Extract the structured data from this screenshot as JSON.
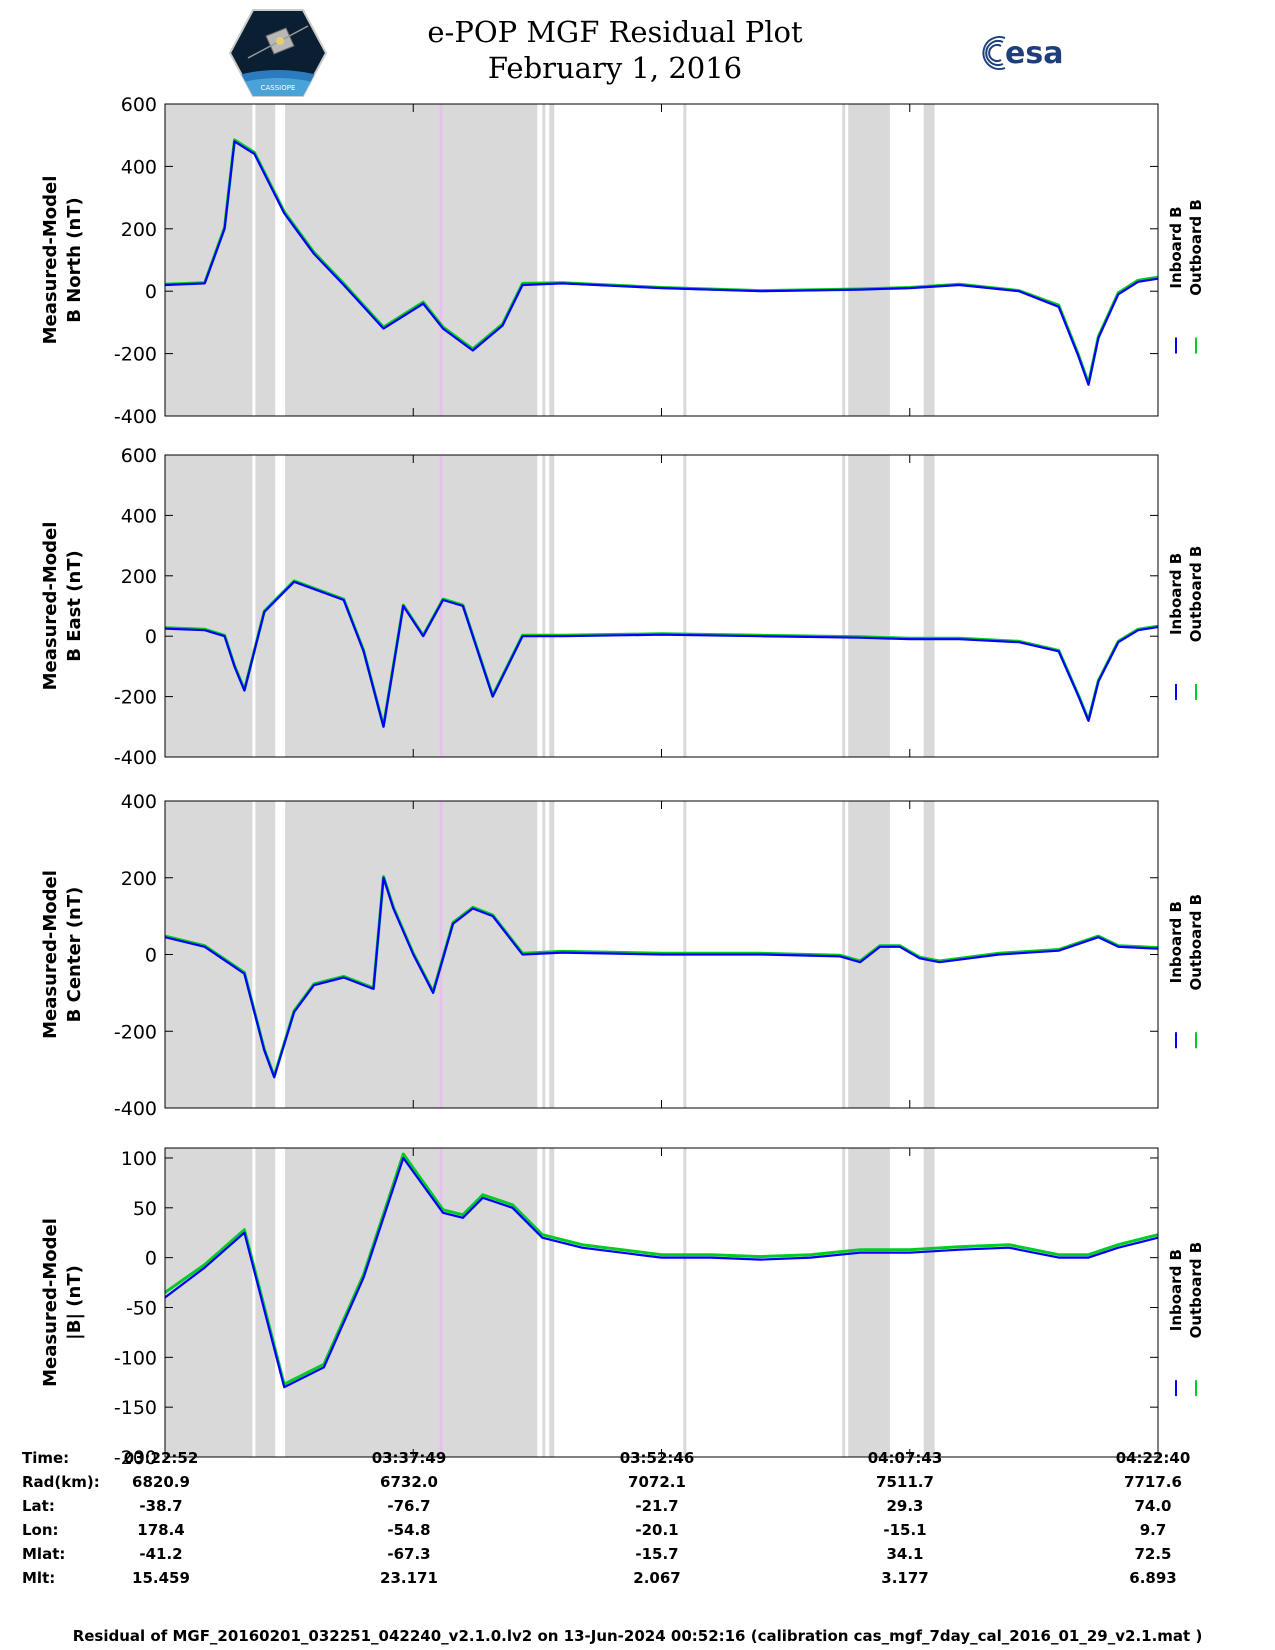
{
  "header": {
    "title_line1": "e-POP MGF Residual Plot",
    "title_line2": "February 1, 2016",
    "mission_logo_caption": "CASSIOPE",
    "esa_logo_text": "esa"
  },
  "colors": {
    "inboard": "#0000ff",
    "outboard": "#00cc22",
    "shade": "#d9d9d9",
    "marker": "#e8c0ee"
  },
  "legend": {
    "inboard": "Inboard B",
    "outboard": "Outboard B"
  },
  "chart_data": [
    {
      "type": "line",
      "title": "",
      "ylabel_line1": "Measured-Model",
      "ylabel_line2": "B North (nT)",
      "ylim": [
        -400,
        600
      ],
      "yticks": [
        "600",
        "400",
        "200",
        "0",
        "-200",
        "-400"
      ],
      "ytick_values": [
        600,
        400,
        200,
        0,
        -200,
        -400
      ],
      "x_minutes": [
        0,
        4,
        6,
        7,
        9,
        12,
        15,
        18,
        20,
        22,
        24,
        26,
        28,
        31,
        34,
        36,
        40,
        50,
        60,
        70,
        75,
        80,
        86,
        90,
        92,
        93,
        94,
        96,
        98,
        100
      ],
      "series": [
        {
          "name": "Inboard B",
          "values": [
            20,
            25,
            200,
            480,
            440,
            250,
            120,
            20,
            -50,
            -120,
            -80,
            -40,
            -120,
            -190,
            -110,
            20,
            25,
            10,
            0,
            5,
            10,
            20,
            0,
            -50,
            -210,
            -300,
            -150,
            -10,
            30,
            40
          ]
        },
        {
          "name": "Outboard B",
          "values": [
            22,
            27,
            205,
            485,
            445,
            255,
            125,
            25,
            -45,
            -115,
            -75,
            -35,
            -115,
            -185,
            -105,
            25,
            27,
            12,
            2,
            7,
            12,
            22,
            2,
            -45,
            -205,
            -295,
            -145,
            -5,
            35,
            45
          ]
        }
      ]
    },
    {
      "type": "line",
      "title": "",
      "ylabel_line1": "Measured-Model",
      "ylabel_line2": "B East (nT)",
      "ylim": [
        -400,
        600
      ],
      "yticks": [
        "600",
        "400",
        "200",
        "0",
        "-200",
        "-400"
      ],
      "ytick_values": [
        600,
        400,
        200,
        0,
        -200,
        -400
      ],
      "x_minutes": [
        0,
        4,
        6,
        7,
        8,
        10,
        13,
        18,
        20,
        22,
        24,
        26,
        28,
        30,
        33,
        36,
        40,
        50,
        60,
        70,
        75,
        80,
        86,
        90,
        92,
        93,
        94,
        96,
        98,
        100
      ],
      "series": [
        {
          "name": "Inboard B",
          "values": [
            25,
            20,
            0,
            -100,
            -180,
            80,
            180,
            120,
            -50,
            -300,
            100,
            0,
            120,
            100,
            -200,
            0,
            0,
            5,
            0,
            -5,
            -10,
            -10,
            -20,
            -50,
            -200,
            -280,
            -150,
            -20,
            20,
            30
          ]
        },
        {
          "name": "Outboard B",
          "values": [
            28,
            23,
            3,
            -97,
            -177,
            83,
            183,
            123,
            -47,
            -297,
            103,
            3,
            123,
            103,
            -197,
            3,
            3,
            8,
            3,
            -2,
            -7,
            -7,
            -17,
            -47,
            -197,
            -277,
            -147,
            -17,
            23,
            33
          ]
        }
      ]
    },
    {
      "type": "line",
      "title": "",
      "ylabel_line1": "Measured-Model",
      "ylabel_line2": "B Center (nT)",
      "ylim": [
        -400,
        400
      ],
      "yticks": [
        "400",
        "200",
        "0",
        "-200",
        "-400"
      ],
      "ytick_values": [
        400,
        200,
        0,
        -200,
        -400
      ],
      "x_minutes": [
        0,
        4,
        8,
        10,
        11,
        13,
        15,
        18,
        21,
        22,
        23,
        25,
        27,
        29,
        31,
        33,
        36,
        40,
        50,
        60,
        68,
        70,
        72,
        74,
        76,
        78,
        84,
        90,
        94,
        96,
        100
      ],
      "series": [
        {
          "name": "Inboard B",
          "values": [
            45,
            20,
            -50,
            -250,
            -320,
            -150,
            -80,
            -60,
            -90,
            200,
            120,
            0,
            -100,
            80,
            120,
            100,
            0,
            5,
            0,
            0,
            -5,
            -20,
            20,
            20,
            -10,
            -20,
            0,
            10,
            45,
            20,
            15
          ]
        },
        {
          "name": "Outboard B",
          "values": [
            48,
            23,
            -47,
            -247,
            -317,
            -147,
            -77,
            -57,
            -87,
            203,
            123,
            3,
            -97,
            83,
            123,
            103,
            3,
            8,
            3,
            3,
            -2,
            -17,
            23,
            23,
            -7,
            -17,
            3,
            13,
            48,
            23,
            18
          ]
        }
      ]
    },
    {
      "type": "line",
      "title": "",
      "ylabel_line1": "Measured-Model",
      "ylabel_line2": "|B| (nT)",
      "ylim": [
        -200,
        110
      ],
      "yticks": [
        "100",
        "50",
        "0",
        "-50",
        "-100",
        "-150",
        "-200"
      ],
      "ytick_values": [
        100,
        50,
        0,
        -50,
        -100,
        -150,
        -200
      ],
      "x_minutes": [
        0,
        4,
        8,
        12,
        16,
        20,
        24,
        28,
        30,
        32,
        35,
        38,
        42,
        46,
        50,
        55,
        60,
        65,
        70,
        75,
        80,
        85,
        90,
        93,
        96,
        100
      ],
      "series": [
        {
          "name": "Inboard B",
          "values": [
            -40,
            -10,
            25,
            -130,
            -110,
            -20,
            100,
            45,
            40,
            60,
            50,
            20,
            10,
            5,
            0,
            0,
            -2,
            0,
            5,
            5,
            8,
            10,
            0,
            0,
            10,
            20
          ]
        },
        {
          "name": "Outboard B",
          "values": [
            -35,
            -7,
            28,
            -127,
            -107,
            -17,
            104,
            48,
            43,
            63,
            53,
            23,
            13,
            8,
            3,
            3,
            1,
            3,
            8,
            8,
            11,
            13,
            3,
            3,
            13,
            23
          ]
        }
      ]
    }
  ],
  "shaded_intervals_minutes": [
    [
      0,
      8.8
    ],
    [
      9.1,
      11.1
    ],
    [
      12.1,
      37.5
    ],
    [
      38.0,
      38.3
    ],
    [
      38.7,
      39.2
    ],
    [
      52.2,
      52.5
    ],
    [
      68.2,
      68.5
    ],
    [
      68.8,
      73.0
    ],
    [
      76.4,
      77.5
    ]
  ],
  "marker_minute": 27.8,
  "xtick_minutes": [
    0,
    25,
    50,
    75,
    100
  ],
  "ephemeris": {
    "labels": [
      "Time:",
      "Rad(km):",
      "Lat:",
      "Lon:",
      "Mlat:",
      "Mlt:"
    ],
    "columns": [
      {
        "time": "03:22:52",
        "rad": "6820.9",
        "lat": "-38.7",
        "lon": "178.4",
        "mlat": "-41.2",
        "mlt": "15.459"
      },
      {
        "time": "03:37:49",
        "rad": "6732.0",
        "lat": "-76.7",
        "lon": "-54.8",
        "mlat": "-67.3",
        "mlt": "23.171"
      },
      {
        "time": "03:52:46",
        "rad": "7072.1",
        "lat": "-21.7",
        "lon": "-20.1",
        "mlat": "-15.7",
        "mlt": "2.067"
      },
      {
        "time": "04:07:43",
        "rad": "7511.7",
        "lat": "29.3",
        "lon": "-15.1",
        "mlat": "34.1",
        "mlt": "3.177"
      },
      {
        "time": "04:22:40",
        "rad": "7717.6",
        "lat": "74.0",
        "lon": "9.7",
        "mlat": "72.5",
        "mlt": "6.893"
      }
    ]
  },
  "footer": "Residual of MGF_20160201_032251_042240_v2.1.0.lv2 on 13-Jun-2024 00:52:16 (calibration cas_mgf_7day_cal_2016_01_29_v2.1.mat )"
}
